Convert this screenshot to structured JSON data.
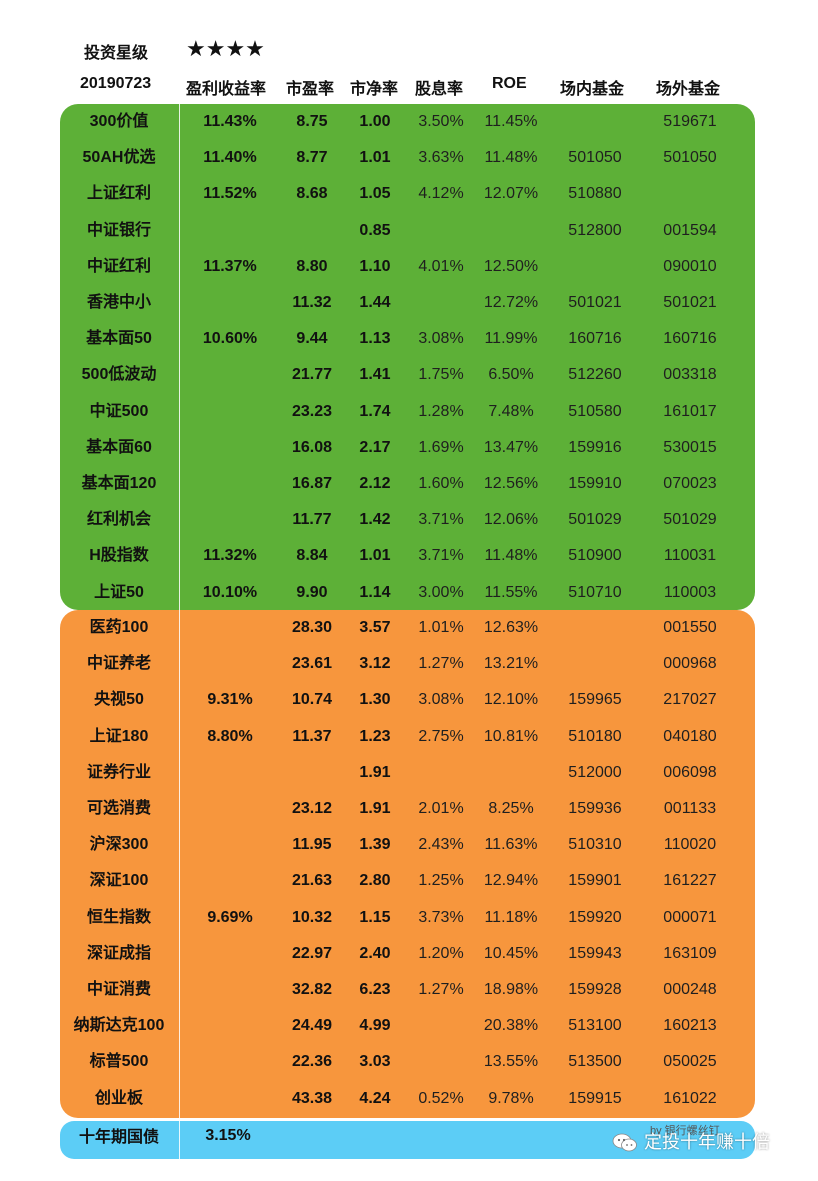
{
  "header": {
    "rating_label": "投资星级",
    "stars": "★★★★",
    "date": "20190723",
    "columns": [
      "盈利收益率",
      "市盈率",
      "市净率",
      "股息率",
      "ROE",
      "场内基金",
      "场外基金"
    ]
  },
  "rows": [
    {
      "name": "300价值",
      "yield": "11.43%",
      "pe": "8.75",
      "pb": "1.00",
      "div": "3.50%",
      "roe": "11.45%",
      "onex": "",
      "offex": "519671"
    },
    {
      "name": "50AH优选",
      "yield": "11.40%",
      "pe": "8.77",
      "pb": "1.01",
      "div": "3.63%",
      "roe": "11.48%",
      "onex": "501050",
      "offex": "501050"
    },
    {
      "name": "上证红利",
      "yield": "11.52%",
      "pe": "8.68",
      "pb": "1.05",
      "div": "4.12%",
      "roe": "12.07%",
      "onex": "510880",
      "offex": ""
    },
    {
      "name": "中证银行",
      "yield": "",
      "pe": "",
      "pb": "0.85",
      "div": "",
      "roe": "",
      "onex": "512800",
      "offex": "001594"
    },
    {
      "name": "中证红利",
      "yield": "11.37%",
      "pe": "8.80",
      "pb": "1.10",
      "div": "4.01%",
      "roe": "12.50%",
      "onex": "",
      "offex": "090010"
    },
    {
      "name": "香港中小",
      "yield": "",
      "pe": "11.32",
      "pb": "1.44",
      "div": "",
      "roe": "12.72%",
      "onex": "501021",
      "offex": "501021"
    },
    {
      "name": "基本面50",
      "yield": "10.60%",
      "pe": "9.44",
      "pb": "1.13",
      "div": "3.08%",
      "roe": "11.99%",
      "onex": "160716",
      "offex": "160716"
    },
    {
      "name": "500低波动",
      "yield": "",
      "pe": "21.77",
      "pb": "1.41",
      "div": "1.75%",
      "roe": "6.50%",
      "onex": "512260",
      "offex": "003318"
    },
    {
      "name": "中证500",
      "yield": "",
      "pe": "23.23",
      "pb": "1.74",
      "div": "1.28%",
      "roe": "7.48%",
      "onex": "510580",
      "offex": "161017"
    },
    {
      "name": "基本面60",
      "yield": "",
      "pe": "16.08",
      "pb": "2.17",
      "div": "1.69%",
      "roe": "13.47%",
      "onex": "159916",
      "offex": "530015"
    },
    {
      "name": "基本面120",
      "yield": "",
      "pe": "16.87",
      "pb": "2.12",
      "div": "1.60%",
      "roe": "12.56%",
      "onex": "159910",
      "offex": "070023"
    },
    {
      "name": "红利机会",
      "yield": "",
      "pe": "11.77",
      "pb": "1.42",
      "div": "3.71%",
      "roe": "12.06%",
      "onex": "501029",
      "offex": "501029"
    },
    {
      "name": "H股指数",
      "yield": "11.32%",
      "pe": "8.84",
      "pb": "1.01",
      "div": "3.71%",
      "roe": "11.48%",
      "onex": "510900",
      "offex": "110031"
    },
    {
      "name": "上证50",
      "yield": "10.10%",
      "pe": "9.90",
      "pb": "1.14",
      "div": "3.00%",
      "roe": "11.55%",
      "onex": "510710",
      "offex": "110003"
    },
    {
      "name": "医药100",
      "yield": "",
      "pe": "28.30",
      "pb": "3.57",
      "div": "1.01%",
      "roe": "12.63%",
      "onex": "",
      "offex": "001550"
    },
    {
      "name": "中证养老",
      "yield": "",
      "pe": "23.61",
      "pb": "3.12",
      "div": "1.27%",
      "roe": "13.21%",
      "onex": "",
      "offex": "000968"
    },
    {
      "name": "央视50",
      "yield": "9.31%",
      "pe": "10.74",
      "pb": "1.30",
      "div": "3.08%",
      "roe": "12.10%",
      "onex": "159965",
      "offex": "217027"
    },
    {
      "name": "上证180",
      "yield": "8.80%",
      "pe": "11.37",
      "pb": "1.23",
      "div": "2.75%",
      "roe": "10.81%",
      "onex": "510180",
      "offex": "040180"
    },
    {
      "name": "证券行业",
      "yield": "",
      "pe": "",
      "pb": "1.91",
      "div": "",
      "roe": "",
      "onex": "512000",
      "offex": "006098"
    },
    {
      "name": "可选消费",
      "yield": "",
      "pe": "23.12",
      "pb": "1.91",
      "div": "2.01%",
      "roe": "8.25%",
      "onex": "159936",
      "offex": "001133"
    },
    {
      "name": "沪深300",
      "yield": "",
      "pe": "11.95",
      "pb": "1.39",
      "div": "2.43%",
      "roe": "11.63%",
      "onex": "510310",
      "offex": "110020"
    },
    {
      "name": "深证100",
      "yield": "",
      "pe": "21.63",
      "pb": "2.80",
      "div": "1.25%",
      "roe": "12.94%",
      "onex": "159901",
      "offex": "161227"
    },
    {
      "name": "恒生指数",
      "yield": "9.69%",
      "pe": "10.32",
      "pb": "1.15",
      "div": "3.73%",
      "roe": "11.18%",
      "onex": "159920",
      "offex": "000071"
    },
    {
      "name": "深证成指",
      "yield": "",
      "pe": "22.97",
      "pb": "2.40",
      "div": "1.20%",
      "roe": "10.45%",
      "onex": "159943",
      "offex": "163109"
    },
    {
      "name": "中证消费",
      "yield": "",
      "pe": "32.82",
      "pb": "6.23",
      "div": "1.27%",
      "roe": "18.98%",
      "onex": "159928",
      "offex": "000248"
    },
    {
      "name": "纳斯达克100",
      "yield": "",
      "pe": "24.49",
      "pb": "4.99",
      "div": "",
      "roe": "20.38%",
      "onex": "513100",
      "offex": "160213"
    },
    {
      "name": "标普500",
      "yield": "",
      "pe": "22.36",
      "pb": "3.03",
      "div": "",
      "roe": "13.55%",
      "onex": "513500",
      "offex": "050025"
    },
    {
      "name": "创业板",
      "yield": "",
      "pe": "43.38",
      "pb": "4.24",
      "div": "0.52%",
      "roe": "9.78%",
      "onex": "159915",
      "offex": "161022"
    }
  ],
  "bond": {
    "name": "十年期国债",
    "yield": "3.15%"
  },
  "watermark": {
    "text": "定投十年赚十倍",
    "small": "by 银行螺丝钉"
  },
  "colors": {
    "green": "#5db037",
    "orange": "#f7963d",
    "blue": "#5ccdf6"
  }
}
